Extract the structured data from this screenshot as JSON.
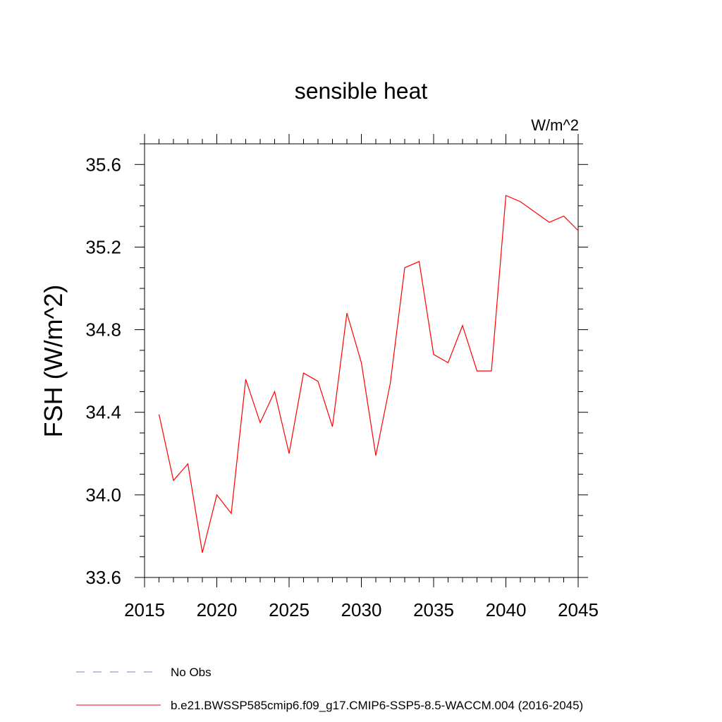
{
  "chart_data": {
    "type": "line",
    "title": "sensible heat",
    "units_label": "W/m^2",
    "ylabel": "FSH  (W/m^2)",
    "xlabel": "",
    "xlim": [
      2015,
      2045
    ],
    "ylim": [
      33.6,
      35.7
    ],
    "x_ticks": [
      2015,
      2020,
      2025,
      2030,
      2035,
      2040,
      2045
    ],
    "y_ticks": [
      33.6,
      34.0,
      34.4,
      34.8,
      35.2,
      35.6
    ],
    "x_tick_labels": [
      "2015",
      "2020",
      "2025",
      "2030",
      "2035",
      "2040",
      "2045"
    ],
    "y_tick_labels": [
      "33.6",
      "34.0",
      "34.4",
      "34.8",
      "35.2",
      "35.6"
    ],
    "grid": false,
    "legend_position": "bottom",
    "series": [
      {
        "name": "b.e21.BWSSP585cmip6.f09_g17.CMIP6-SSP5-8.5-WACCM.004 (2016-2045)",
        "color": "#ff0000",
        "dash": "solid",
        "x": [
          2016,
          2017,
          2018,
          2019,
          2020,
          2021,
          2022,
          2023,
          2024,
          2025,
          2026,
          2027,
          2028,
          2029,
          2030,
          2031,
          2032,
          2033,
          2034,
          2035,
          2036,
          2037,
          2038,
          2039,
          2040,
          2041,
          2042,
          2043,
          2044,
          2045
        ],
        "values": [
          34.39,
          34.07,
          34.15,
          33.72,
          34.0,
          33.91,
          34.56,
          34.35,
          34.5,
          34.2,
          34.59,
          34.55,
          34.33,
          34.88,
          34.64,
          34.19,
          34.54,
          35.1,
          35.13,
          34.68,
          34.64,
          34.82,
          34.6,
          34.6,
          35.45,
          35.42,
          35.37,
          35.32,
          35.35,
          35.28
        ]
      }
    ],
    "legend": [
      {
        "label": "No Obs",
        "color": "#7f7fbf",
        "dash": "dashed"
      },
      {
        "label": "b.e21.BWSSP585cmip6.f09_g17.CMIP6-SSP5-8.5-WACCM.004 (2016-2045)",
        "color": "#ff0000",
        "dash": "solid"
      }
    ]
  }
}
